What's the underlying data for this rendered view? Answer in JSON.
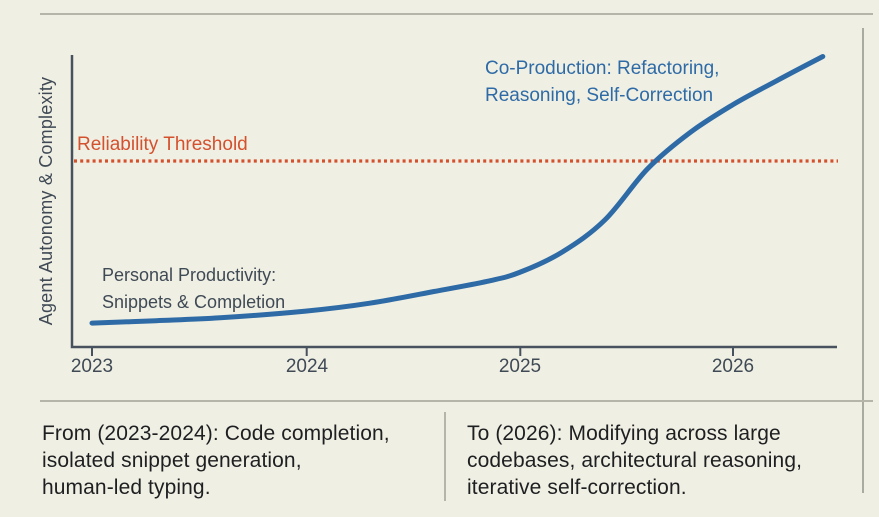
{
  "colors": {
    "background": "#f0efe4",
    "curve_blue": "#2e6ba6",
    "threshold_orange": "#d4512e",
    "axis_slate": "#47525e",
    "text_dark": "#3f4a55",
    "footer_text": "#1e1f21",
    "rule_gray": "#b5b5aa"
  },
  "chart": {
    "y_axis_label": "Agent Autonomy & Complexity",
    "x_ticks": [
      "2023",
      "2024",
      "2025",
      "2026"
    ],
    "threshold_label": "Reliability Threshold",
    "annotation_co_production": {
      "lines": [
        "Co-Production: Refactoring,",
        "Reasoning, Self-Correction"
      ]
    },
    "annotation_personal": {
      "lines": [
        "Personal Productivity:",
        "Snippets & Completion"
      ]
    }
  },
  "footer": {
    "from": {
      "lines": [
        "From (2023-2024): Code completion,",
        "isolated snippet generation,",
        "human-led typing."
      ]
    },
    "to": {
      "lines": [
        "To (2026): Modifying across large",
        "codebases, architectural reasoning,",
        "iterative self-correction."
      ]
    }
  },
  "chart_data": {
    "type": "line",
    "title": "",
    "xlabel": "",
    "ylabel": "Agent Autonomy & Complexity",
    "x_axis": {
      "ticks": [
        2023,
        2024,
        2025,
        2026
      ],
      "range": [
        2023,
        2026.45
      ]
    },
    "y_axis": {
      "range": [
        0,
        1
      ],
      "units": "relative autonomy & complexity (axis unlabeled)"
    },
    "grid": false,
    "legend": false,
    "series": [
      {
        "name": "Agent autonomy & complexity over time",
        "color": "#2e6ba6",
        "x": [
          2023,
          2023.3,
          2023.6,
          2024,
          2024.3,
          2024.6,
          2024.85,
          2025,
          2025.2,
          2025.4,
          2025.6,
          2025.8,
          2026,
          2026.2,
          2026.42
        ],
        "y": [
          0.082,
          0.09,
          0.1,
          0.123,
          0.15,
          0.19,
          0.225,
          0.255,
          0.325,
          0.435,
          0.61,
          0.735,
          0.83,
          0.91,
          0.995
        ]
      }
    ],
    "threshold": {
      "label": "Reliability Threshold",
      "value": 0.637,
      "style": "dotted",
      "color": "#d4512e"
    },
    "annotations": [
      {
        "text": "Personal Productivity: Snippets & Completion",
        "x": 2023.05,
        "y": 0.28,
        "color": "#3f4a55"
      },
      {
        "text": "Co-Production: Refactoring, Reasoning, Self-Correction",
        "x": 2024.85,
        "y": 0.99,
        "color": "#2e6ba6"
      }
    ]
  }
}
